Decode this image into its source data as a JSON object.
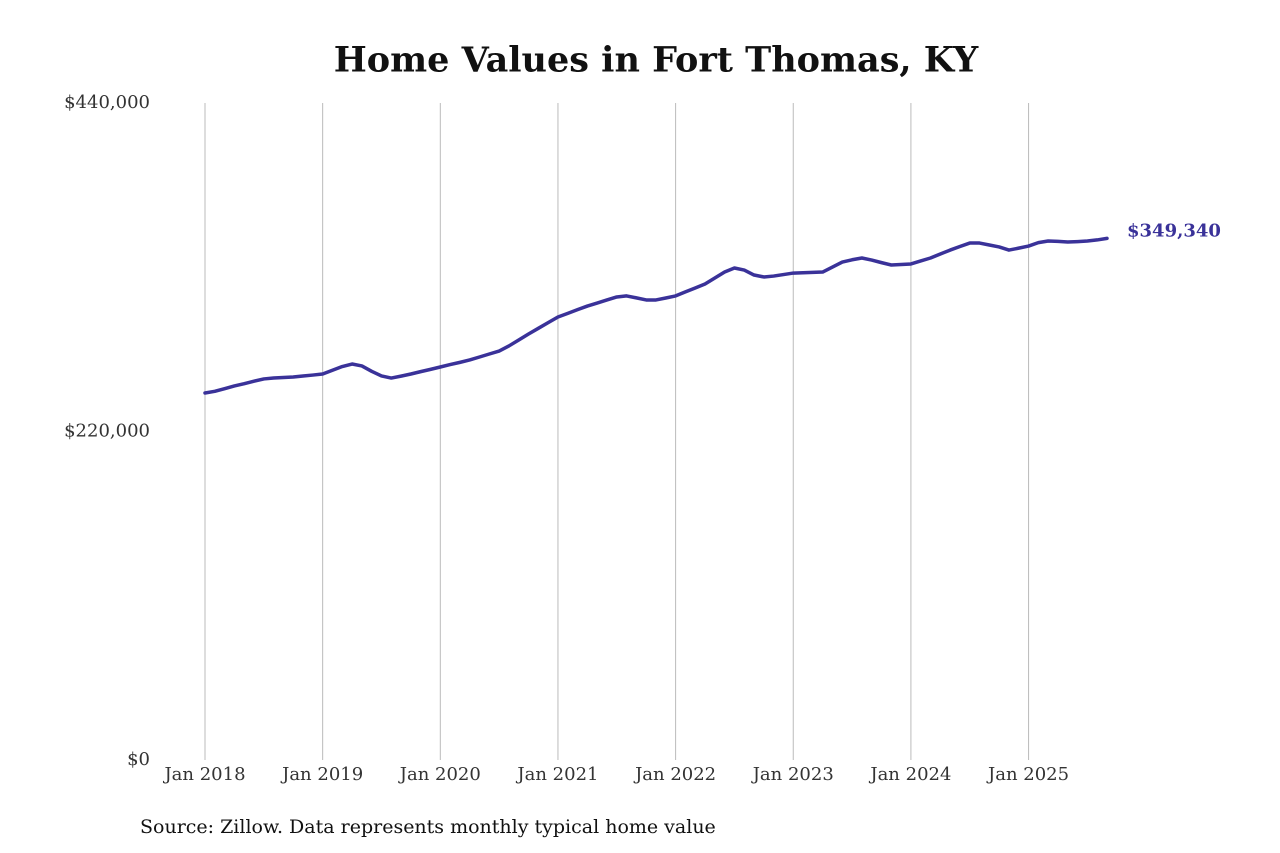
{
  "chart_data": {
    "type": "line",
    "title": "Home Values in Fort Thomas, KY",
    "source": "Source: Zillow. Data represents monthly typical home value",
    "color": "#3a3299",
    "grid": true,
    "x": [
      "2018-01",
      "2018-02",
      "2018-03",
      "2018-04",
      "2018-05",
      "2018-06",
      "2018-07",
      "2018-08",
      "2018-09",
      "2018-10",
      "2018-11",
      "2018-12",
      "2019-01",
      "2019-02",
      "2019-03",
      "2019-04",
      "2019-05",
      "2019-06",
      "2019-07",
      "2019-08",
      "2019-09",
      "2019-10",
      "2019-11",
      "2019-12",
      "2020-01",
      "2020-02",
      "2020-03",
      "2020-04",
      "2020-05",
      "2020-06",
      "2020-07",
      "2020-08",
      "2020-09",
      "2020-10",
      "2020-11",
      "2020-12",
      "2021-01",
      "2021-02",
      "2021-03",
      "2021-04",
      "2021-05",
      "2021-06",
      "2021-07",
      "2021-08",
      "2021-09",
      "2021-10",
      "2021-11",
      "2021-12",
      "2022-01",
      "2022-02",
      "2022-03",
      "2022-04",
      "2022-05",
      "2022-06",
      "2022-07",
      "2022-08",
      "2022-09",
      "2022-10",
      "2022-11",
      "2022-12",
      "2023-01",
      "2023-02",
      "2023-03",
      "2023-04",
      "2023-05",
      "2023-06",
      "2023-07",
      "2023-08",
      "2023-09",
      "2023-10",
      "2023-11",
      "2023-12",
      "2024-01",
      "2024-02",
      "2024-03",
      "2024-04",
      "2024-05",
      "2024-06",
      "2024-07",
      "2024-08",
      "2024-09",
      "2024-10",
      "2024-11",
      "2024-12",
      "2025-01",
      "2025-02",
      "2025-03",
      "2025-04",
      "2025-05",
      "2025-06",
      "2025-07",
      "2025-08",
      "2025-09"
    ],
    "values": [
      245800,
      246900,
      248700,
      250500,
      252000,
      253700,
      255200,
      255800,
      256200,
      256500,
      257200,
      257800,
      258500,
      261000,
      263500,
      265200,
      263900,
      260300,
      257200,
      255800,
      257100,
      258500,
      260100,
      261600,
      263200,
      264800,
      266300,
      267900,
      269900,
      271900,
      273900,
      277300,
      281300,
      285300,
      289100,
      292900,
      296700,
      299100,
      301600,
      304000,
      306000,
      308100,
      310100,
      310800,
      309500,
      308100,
      308100,
      309400,
      310800,
      313500,
      316100,
      318800,
      322800,
      326800,
      329500,
      328100,
      324800,
      323500,
      324100,
      325100,
      326100,
      326300,
      326600,
      326800,
      330100,
      333500,
      335000,
      336200,
      334800,
      333100,
      331500,
      331800,
      332200,
      334200,
      336200,
      338900,
      341500,
      343900,
      346200,
      346200,
      344900,
      343600,
      341500,
      342800,
      344200,
      346500,
      347600,
      347300,
      346900,
      347200,
      347600,
      348300,
      349340
    ],
    "value_labels": [
      null,
      null,
      null,
      null,
      null,
      null,
      null,
      null,
      null,
      null,
      null,
      null,
      null,
      null,
      null,
      null,
      null,
      null,
      null,
      null,
      null,
      null,
      null,
      null,
      null,
      null,
      null,
      null,
      null,
      null,
      null,
      null,
      null,
      null,
      null,
      null,
      null,
      null,
      null,
      null,
      null,
      null,
      null,
      null,
      null,
      null,
      null,
      null,
      null,
      null,
      null,
      null,
      null,
      null,
      null,
      null,
      null,
      null,
      null,
      null,
      null,
      null,
      null,
      null,
      null,
      null,
      null,
      null,
      null,
      null,
      null,
      null,
      null,
      null,
      null,
      null,
      null,
      null,
      null,
      null,
      null,
      null,
      null,
      null,
      null,
      null,
      null,
      null,
      null,
      null,
      null,
      null,
      "$349,340"
    ],
    "xlim": [
      "2018-01",
      "2025-09"
    ],
    "xticks": [
      {
        "value": "2018-01",
        "label": "Jan 2018"
      },
      {
        "value": "2019-01",
        "label": "Jan 2019"
      },
      {
        "value": "2020-01",
        "label": "Jan 2020"
      },
      {
        "value": "2021-01",
        "label": "Jan 2021"
      },
      {
        "value": "2022-01",
        "label": "Jan 2022"
      },
      {
        "value": "2023-01",
        "label": "Jan 2023"
      },
      {
        "value": "2024-01",
        "label": "Jan 2024"
      },
      {
        "value": "2025-01",
        "label": "Jan 2025"
      }
    ],
    "ylim": [
      0,
      440000
    ],
    "yticks": [
      {
        "value": 0,
        "label": "$0"
      },
      {
        "value": 220000,
        "label": "$220,000"
      },
      {
        "value": 440000,
        "label": "$440,000"
      }
    ]
  }
}
